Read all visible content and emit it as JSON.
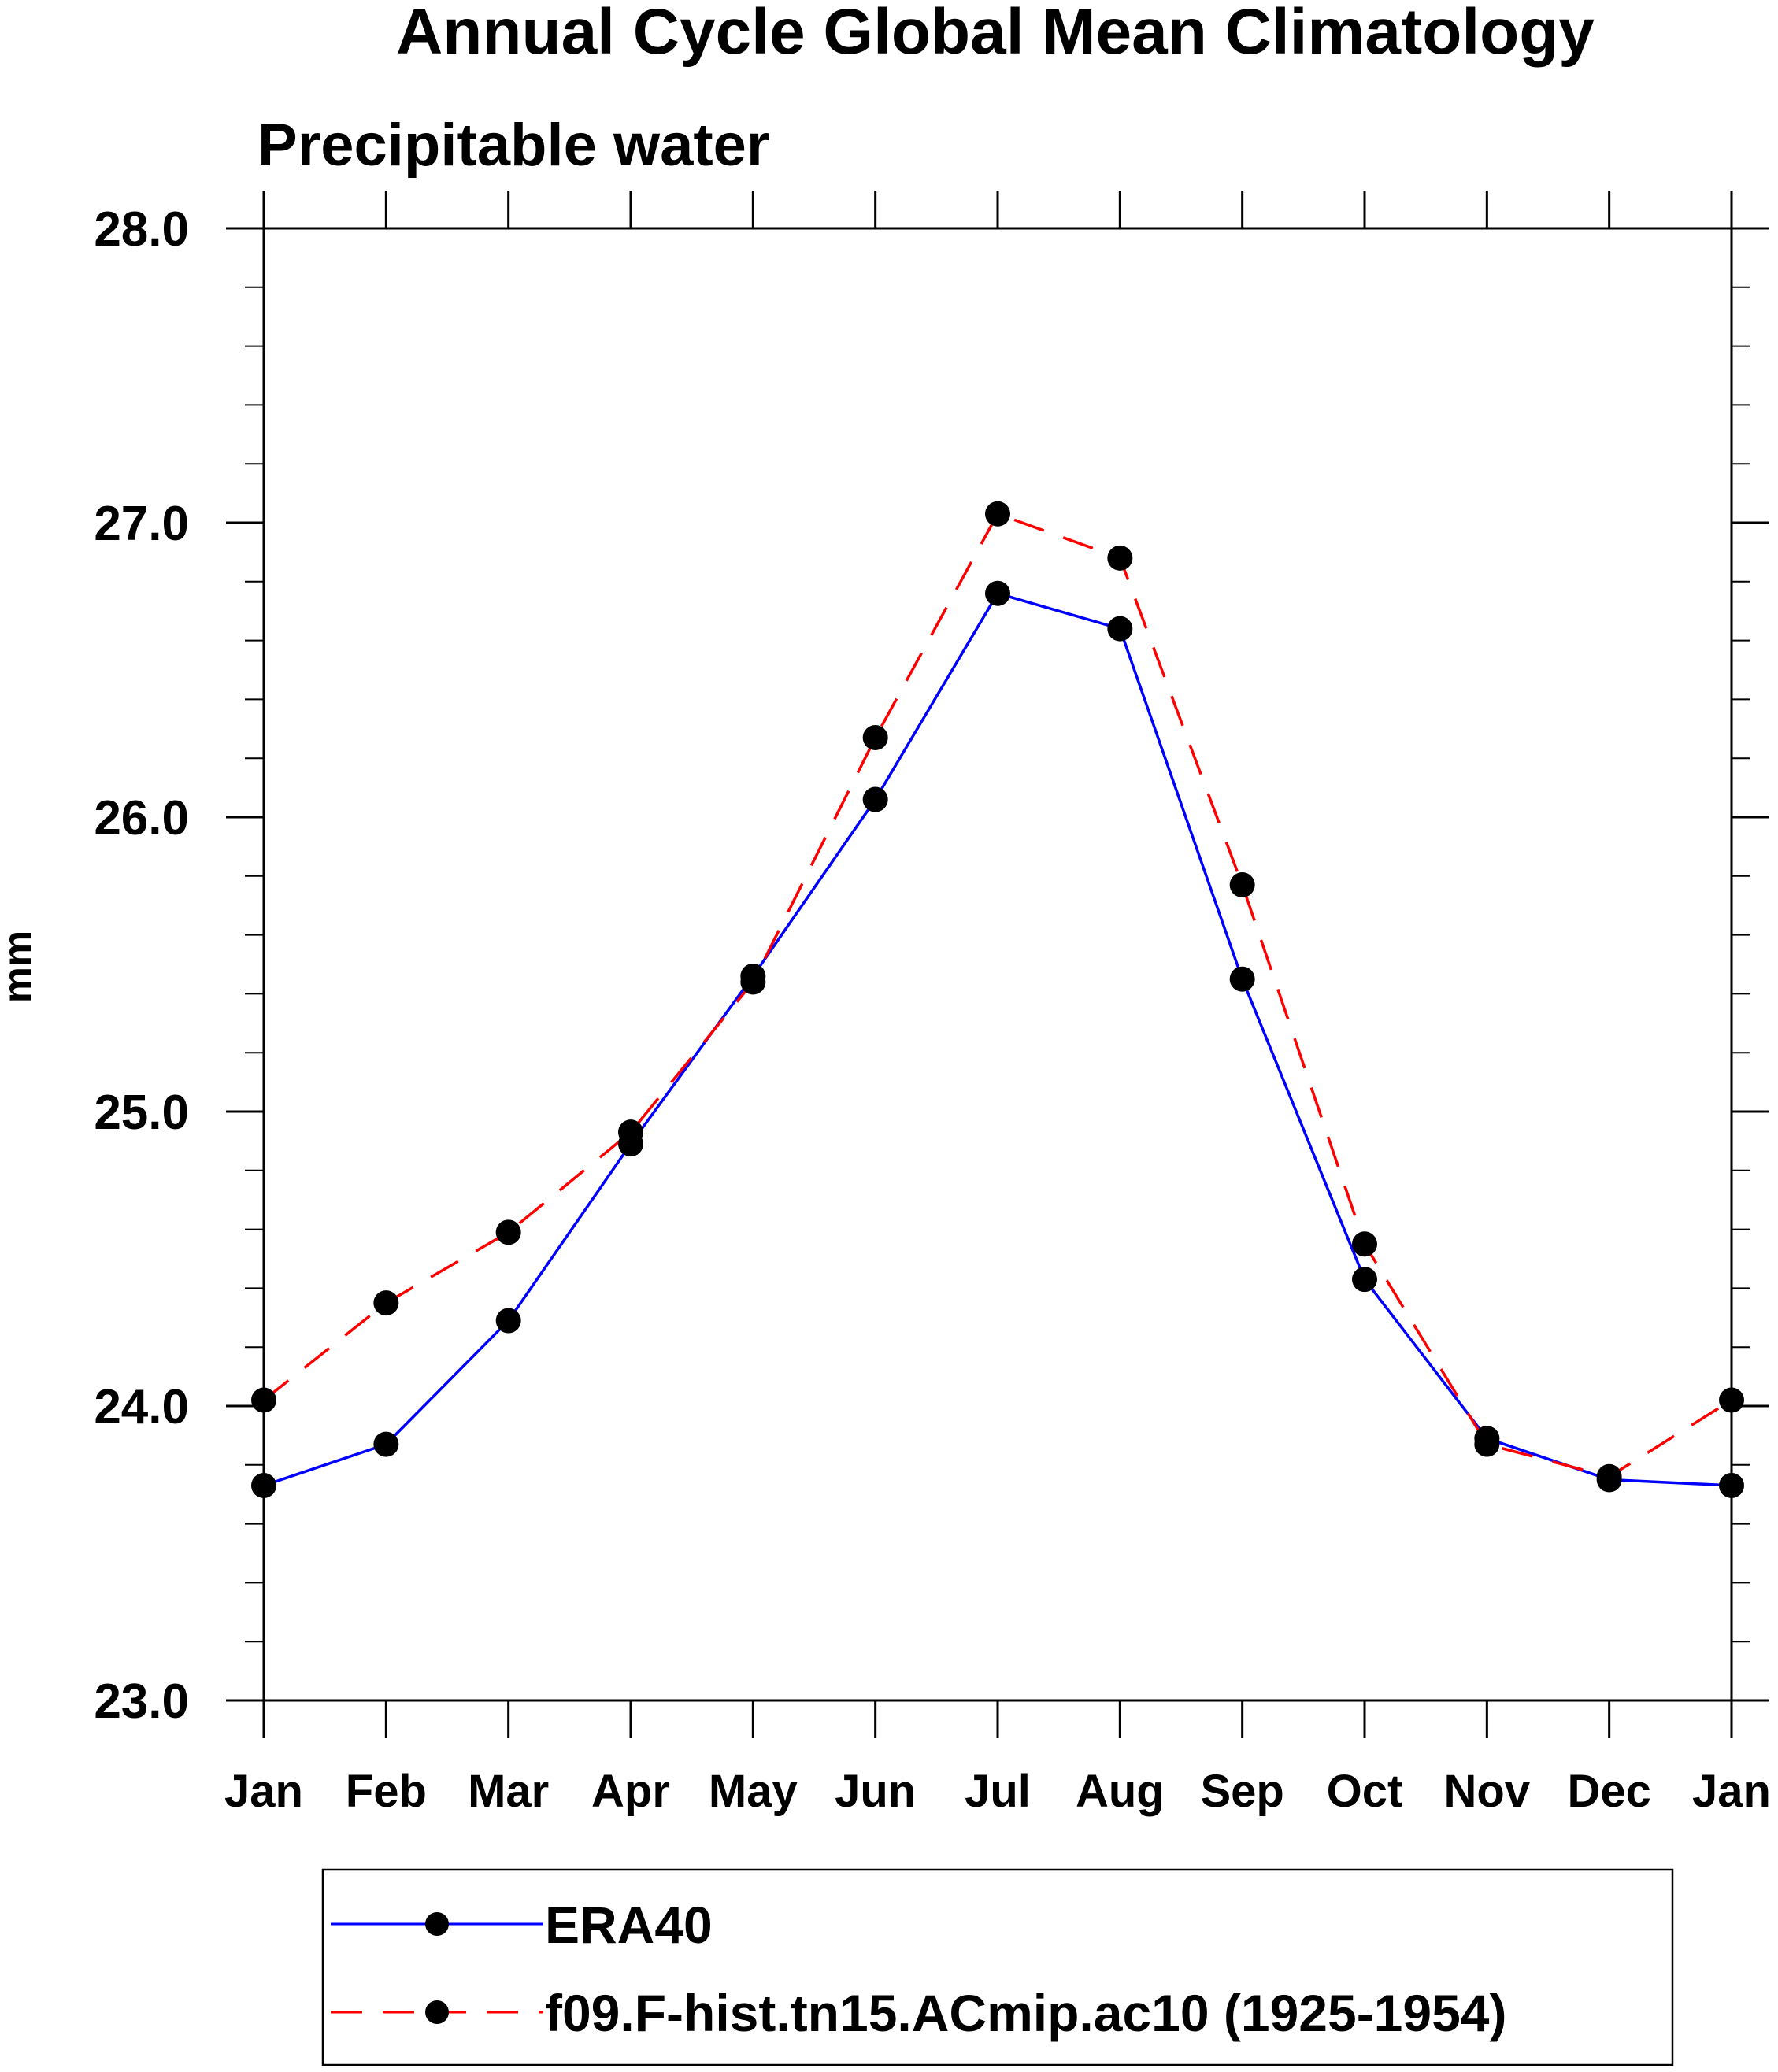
{
  "chart_data": {
    "type": "line",
    "title": "Annual Cycle Global Mean Climatology",
    "subtitle": "Precipitable water",
    "xlabel": "",
    "ylabel": "mm",
    "ylim": [
      23.0,
      28.0
    ],
    "yticks": [
      "23.0",
      "24.0",
      "25.0",
      "26.0",
      "27.0",
      "28.0"
    ],
    "ytick_values": [
      23.0,
      24.0,
      25.0,
      26.0,
      27.0,
      28.0
    ],
    "y_minor_step": 0.2,
    "categories": [
      "Jan",
      "Feb",
      "Mar",
      "Apr",
      "May",
      "Jun",
      "Jul",
      "Aug",
      "Sep",
      "Oct",
      "Nov",
      "Dec",
      "Jan"
    ],
    "grid": false,
    "legend_position": "bottom",
    "series": [
      {
        "name": "ERA40",
        "color": "#0000ff",
        "dash": "solid",
        "marker": "filled-circle",
        "values": [
          23.73,
          23.87,
          24.29,
          24.89,
          25.46,
          26.06,
          26.76,
          26.64,
          25.45,
          24.43,
          23.89,
          23.75,
          23.73
        ]
      },
      {
        "name": "f09.F-hist.tn15.ACmip.ac10 (1925-1954)",
        "color": "#ff0000",
        "dash": "dashed",
        "marker": "filled-circle",
        "values": [
          24.02,
          24.35,
          24.59,
          24.93,
          25.44,
          26.27,
          27.03,
          26.88,
          25.77,
          24.55,
          23.87,
          23.76,
          24.02
        ]
      }
    ]
  }
}
